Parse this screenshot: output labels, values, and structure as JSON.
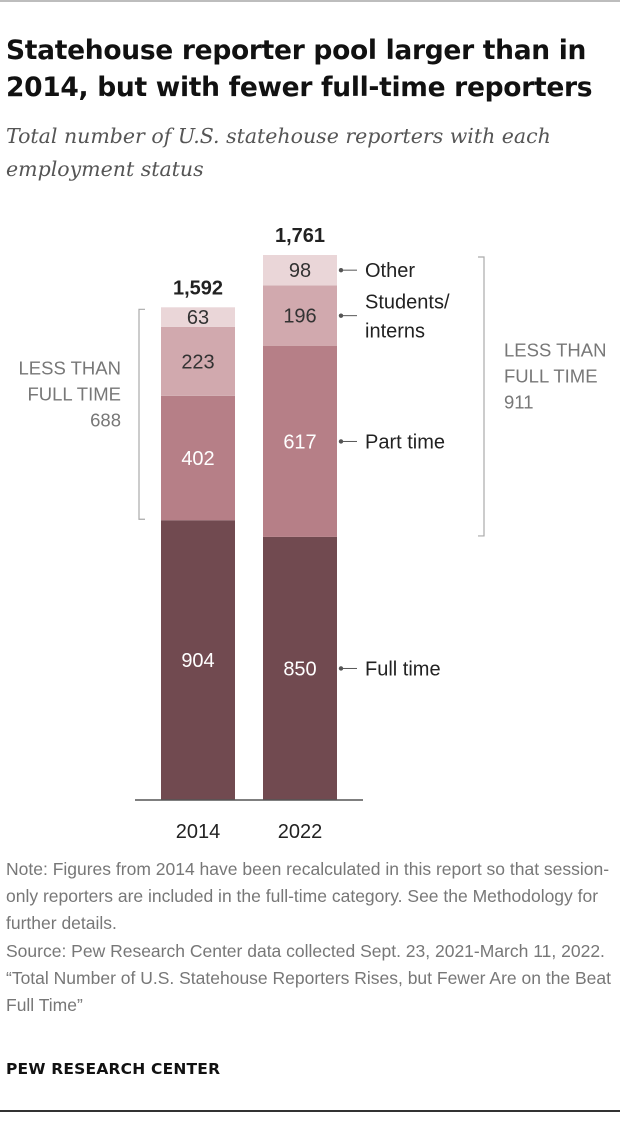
{
  "title": "Statehouse reporter pool larger than in 2014, but with fewer full-time reporters",
  "subtitle": "Total number of U.S. statehouse reporters with each employment status",
  "chart_data": {
    "type": "bar",
    "stacked": true,
    "categories": [
      "2014",
      "2022"
    ],
    "totals": [
      "1,592",
      "1,761"
    ],
    "series": [
      {
        "name": "Full time",
        "values": [
          904,
          850
        ],
        "color": "#714a50",
        "label_color": "#ffffff"
      },
      {
        "name": "Part time",
        "values": [
          402,
          617
        ],
        "color": "#b67f87",
        "label_color": "#ffffff"
      },
      {
        "name": "Students/ interns",
        "label_lines": [
          "Students/",
          "interns"
        ],
        "values": [
          223,
          196
        ],
        "color": "#d1a9ae",
        "label_color": "#333333"
      },
      {
        "name": "Other",
        "values": [
          63,
          98
        ],
        "color": "#ead6d8",
        "label_color": "#333333"
      }
    ],
    "brackets": [
      {
        "category": "2014",
        "lines": [
          "LESS THAN",
          "FULL TIME",
          "688"
        ],
        "value": 688,
        "side": "left"
      },
      {
        "category": "2022",
        "lines": [
          "LESS THAN",
          "FULL TIME",
          "911"
        ],
        "value": 911,
        "side": "right"
      }
    ],
    "ylim": [
      0,
      1761
    ],
    "legend_placement": "right"
  },
  "notes": {
    "note": "Note: Figures from 2014 have been recalculated in this report so that session-only reporters are included in the full-time category. See the Methodology for further details.",
    "source": "Source: Pew Research Center data collected Sept. 23, 2021-March 11, 2022.",
    "report": "“Total Number of U.S. Statehouse Reporters Rises, but Fewer Are on the Beat Full Time”"
  },
  "brand": "PEW RESEARCH CENTER"
}
